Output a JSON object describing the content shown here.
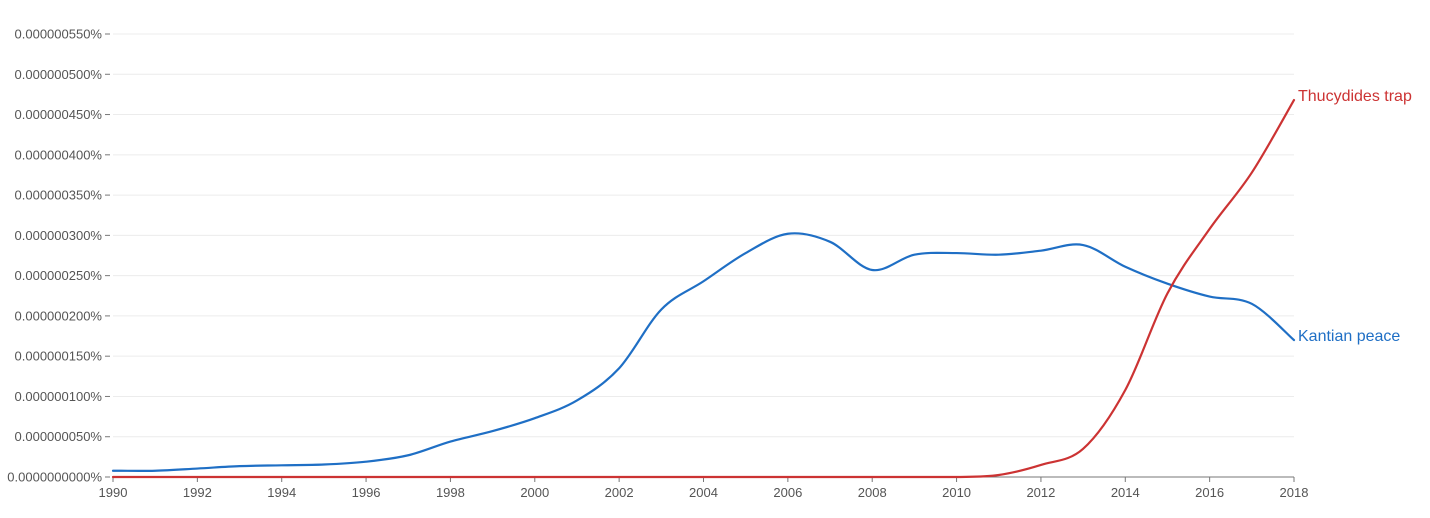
{
  "chart_data": {
    "type": "line",
    "title": "",
    "xlabel": "",
    "ylabel": "",
    "xlim": [
      1990,
      2018
    ],
    "ylim": [
      0,
      5.5e-07
    ],
    "x_ticks": [
      1990,
      1992,
      1994,
      1996,
      1998,
      2000,
      2002,
      2004,
      2006,
      2008,
      2010,
      2012,
      2014,
      2016,
      2018
    ],
    "x_tick_labels": [
      "1990",
      "1992",
      "1994",
      "1996",
      "1998",
      "2000",
      "2002",
      "2004",
      "2006",
      "2008",
      "2010",
      "2012",
      "2014",
      "2016",
      "2018"
    ],
    "y_ticks": [
      0,
      5e-08,
      1e-07,
      1.5e-07,
      2e-07,
      2.5e-07,
      3e-07,
      3.5e-07,
      4e-07,
      4.5e-07,
      5e-07,
      5.5e-07
    ],
    "y_tick_labels": [
      "0.0000000000%",
      "0.000000050%",
      "0.000000100%",
      "0.000000150%",
      "0.000000200%",
      "0.000000250%",
      "0.000000300%",
      "0.000000350%",
      "0.000000400%",
      "0.000000450%",
      "0.000000500%",
      "0.000000550%"
    ],
    "grid": true,
    "legend": "inline-end-labels",
    "series": [
      {
        "name": "Kantian peace",
        "color": "#1f6fc5",
        "x": [
          1990,
          1991,
          1992,
          1993,
          1994,
          1995,
          1996,
          1997,
          1998,
          1999,
          2000,
          2001,
          2002,
          2003,
          2004,
          2005,
          2006,
          2007,
          2008,
          2009,
          2010,
          2011,
          2012,
          2013,
          2014,
          2015,
          2016,
          2017,
          2018
        ],
        "y": [
          7.8e-09,
          7.8e-09,
          1.05e-08,
          1.35e-08,
          1.45e-08,
          1.55e-08,
          1.9e-08,
          2.7e-08,
          4.4e-08,
          5.7e-08,
          7.3e-08,
          9.5e-08,
          1.35e-07,
          2.08e-07,
          2.43e-07,
          2.78e-07,
          3.02e-07,
          2.92e-07,
          2.57e-07,
          2.76e-07,
          2.78e-07,
          2.76e-07,
          2.81e-07,
          2.88e-07,
          2.61e-07,
          2.4e-07,
          2.24e-07,
          2.15e-07,
          1.7e-07
        ]
      },
      {
        "name": "Thucydides trap",
        "color": "#cc3333",
        "x": [
          1990,
          1991,
          1992,
          1993,
          1994,
          1995,
          1996,
          1997,
          1998,
          1999,
          2000,
          2001,
          2002,
          2003,
          2004,
          2005,
          2006,
          2007,
          2008,
          2009,
          2010,
          2011,
          2012,
          2013,
          2014,
          2015,
          2016,
          2017,
          2018
        ],
        "y": [
          0,
          0,
          0,
          0,
          0,
          0,
          0,
          0,
          0,
          0,
          0,
          0,
          0,
          0,
          0,
          0,
          0,
          0,
          0,
          0,
          0,
          2.5e-09,
          1.5e-08,
          3.5e-08,
          1.08e-07,
          2.28e-07,
          3.08e-07,
          3.78e-07,
          4.68e-07
        ]
      }
    ]
  }
}
